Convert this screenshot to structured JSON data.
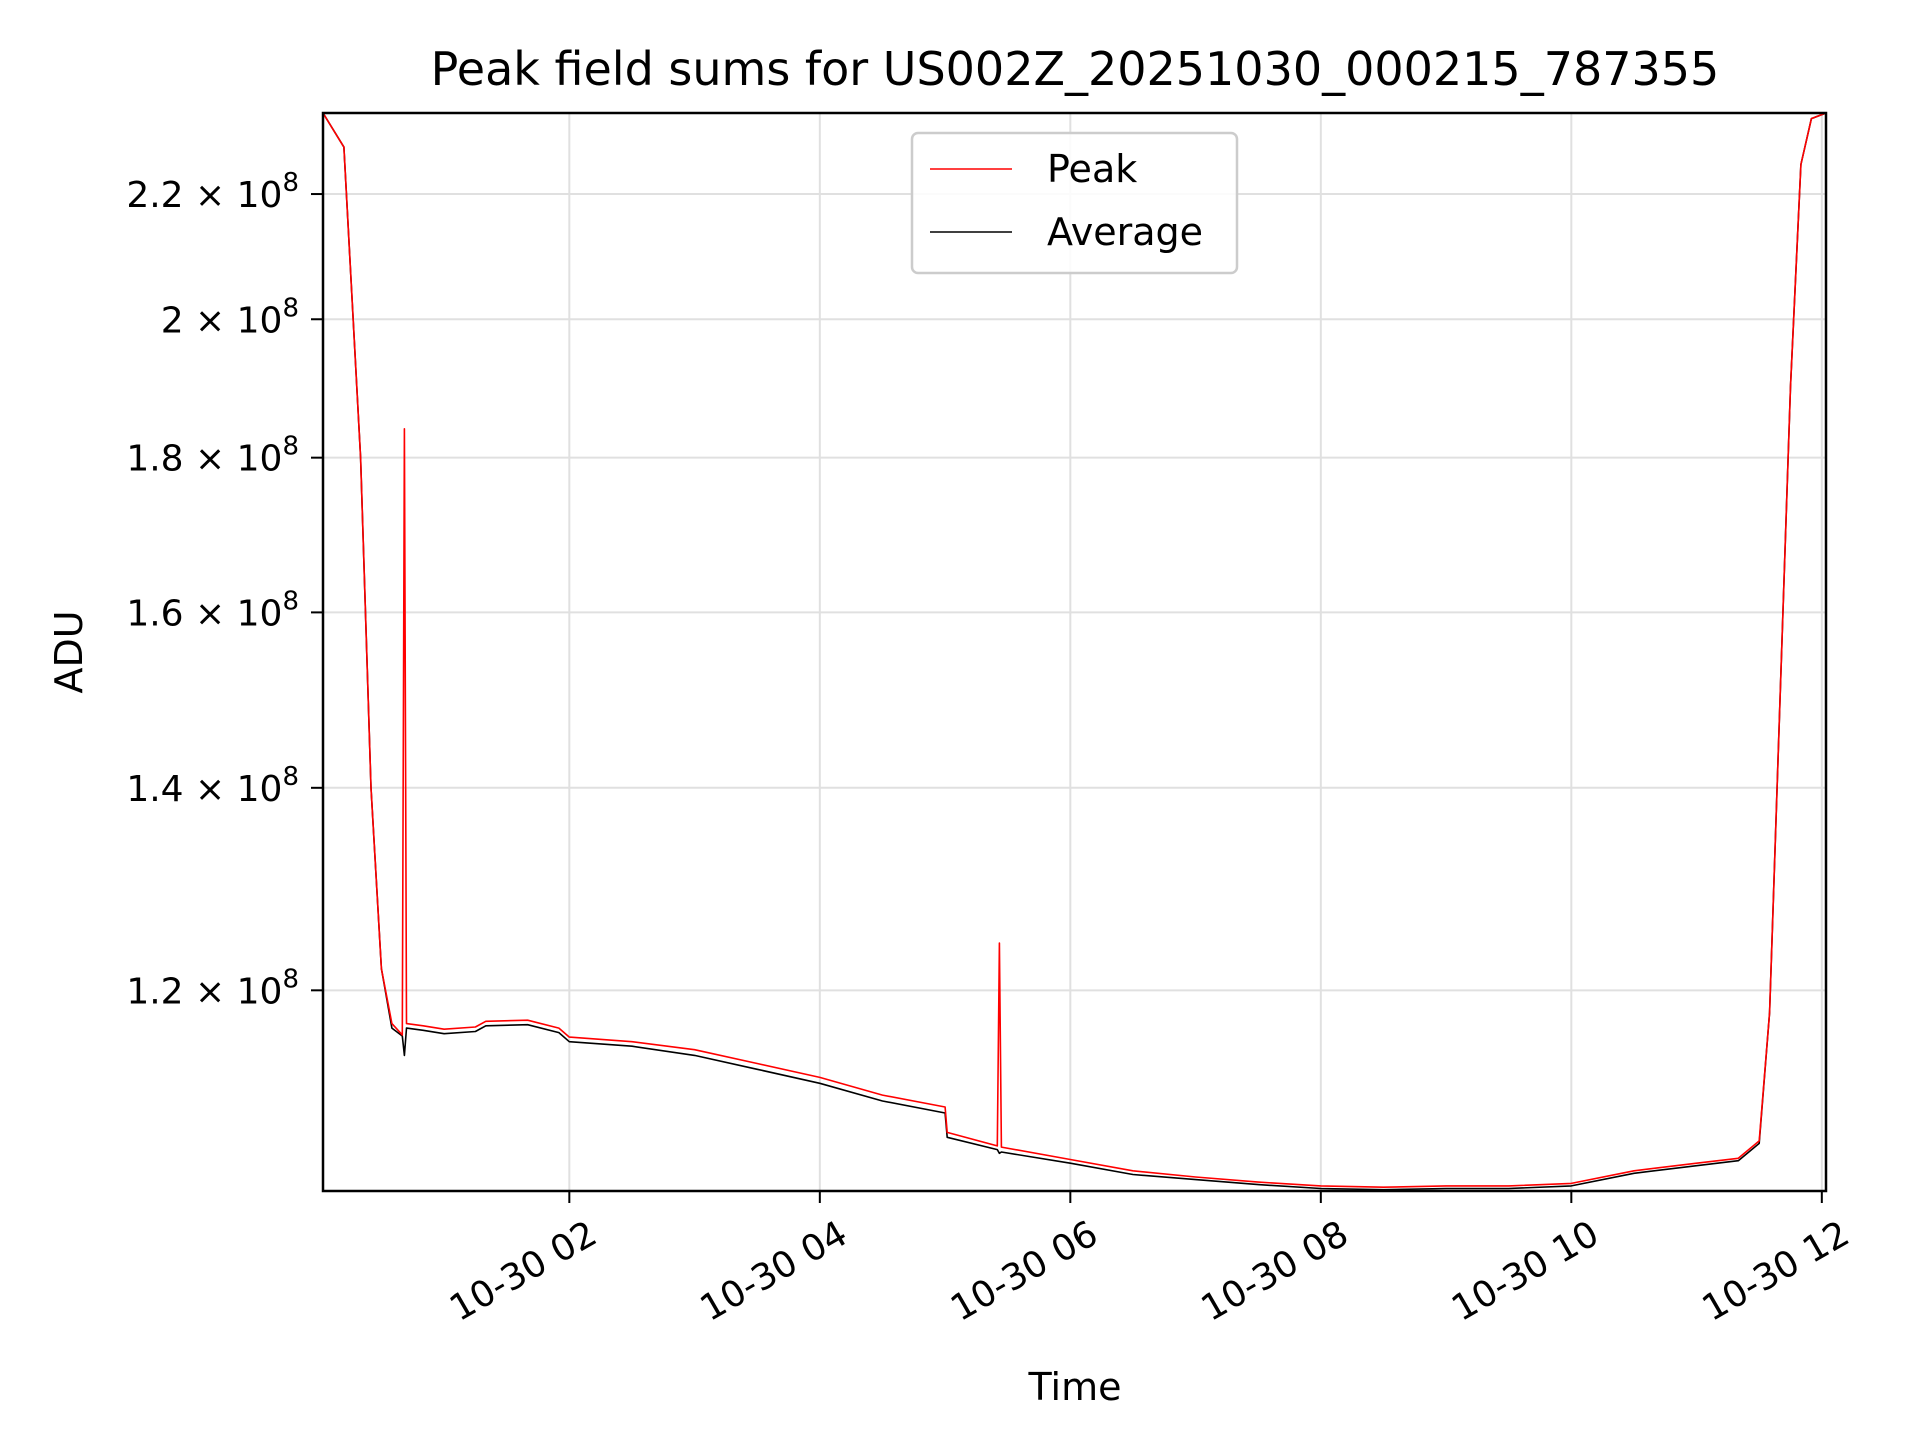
{
  "chart_data": {
    "type": "line",
    "title": "Peak field sums for US002Z_20251030_000215_787355",
    "xlabel": "Time",
    "ylabel": "ADU",
    "yscale": "log",
    "grid": true,
    "legend_position": "top-center",
    "xlim": [
      "2025-10-30 00:02",
      "2025-10-30 12:02"
    ],
    "ylim": [
      103000000,
      234000000
    ],
    "x_ticks": [
      {
        "x": "2025-10-30 02:00",
        "label": "10-30 02"
      },
      {
        "x": "2025-10-30 04:00",
        "label": "10-30 04"
      },
      {
        "x": "2025-10-30 06:00",
        "label": "10-30 06"
      },
      {
        "x": "2025-10-30 08:00",
        "label": "10-30 08"
      },
      {
        "x": "2025-10-30 10:00",
        "label": "10-30 10"
      },
      {
        "x": "2025-10-30 12:00",
        "label": "10-30 12"
      }
    ],
    "y_ticks": [
      {
        "value": 120000000,
        "mantissa": "1.2",
        "exponent": "8"
      },
      {
        "value": 140000000,
        "mantissa": "1.4",
        "exponent": "8"
      },
      {
        "value": 160000000,
        "mantissa": "1.6",
        "exponent": "8"
      },
      {
        "value": 180000000,
        "mantissa": "1.8",
        "exponent": "8"
      },
      {
        "value": 200000000,
        "mantissa": "2",
        "exponent": "8"
      },
      {
        "value": 220000000,
        "mantissa": "2.2",
        "exponent": "8"
      }
    ],
    "series": [
      {
        "name": "Peak",
        "color": "#ff0000",
        "x": [
          "2025-10-30 00:02",
          "2025-10-30 00:12",
          "2025-10-30 00:20",
          "2025-10-30 00:25",
          "2025-10-30 00:30",
          "2025-10-30 00:35",
          "2025-10-30 00:40",
          "2025-10-30 00:41",
          "2025-10-30 00:42",
          "2025-10-30 00:50",
          "2025-10-30 01:00",
          "2025-10-30 01:15",
          "2025-10-30 01:20",
          "2025-10-30 01:40",
          "2025-10-30 01:55",
          "2025-10-30 02:00",
          "2025-10-30 02:30",
          "2025-10-30 03:00",
          "2025-10-30 03:30",
          "2025-10-30 04:00",
          "2025-10-30 04:30",
          "2025-10-30 05:00",
          "2025-10-30 05:01",
          "2025-10-30 05:25",
          "2025-10-30 05:26",
          "2025-10-30 05:27",
          "2025-10-30 06:00",
          "2025-10-30 06:30",
          "2025-10-30 07:00",
          "2025-10-30 07:30",
          "2025-10-30 08:00",
          "2025-10-30 08:30",
          "2025-10-30 09:00",
          "2025-10-30 09:30",
          "2025-10-30 10:00",
          "2025-10-30 10:30",
          "2025-10-30 11:00",
          "2025-10-30 11:20",
          "2025-10-30 11:30",
          "2025-10-30 11:35",
          "2025-10-30 11:40",
          "2025-10-30 11:45",
          "2025-10-30 11:50",
          "2025-10-30 11:55",
          "2025-10-30 12:02"
        ],
        "y": [
          234000000,
          228000000,
          180000000,
          140000000,
          122000000,
          117000000,
          116000000,
          184000000,
          117000000,
          116800000,
          116500000,
          116700000,
          117200000,
          117300000,
          116600000,
          115800000,
          115400000,
          114700000,
          113500000,
          112300000,
          110800000,
          109800000,
          107700000,
          106600000,
          124400000,
          106500000,
          105500000,
          104600000,
          104100000,
          103700000,
          103400000,
          103300000,
          103400000,
          103400000,
          103600000,
          104600000,
          105200000,
          105600000,
          107000000,
          118000000,
          150000000,
          190000000,
          225000000,
          233000000,
          234000000
        ]
      },
      {
        "name": "Average",
        "color": "#000000",
        "x": [
          "2025-10-30 00:02",
          "2025-10-30 00:12",
          "2025-10-30 00:20",
          "2025-10-30 00:25",
          "2025-10-30 00:30",
          "2025-10-30 00:35",
          "2025-10-30 00:40",
          "2025-10-30 00:41",
          "2025-10-30 00:42",
          "2025-10-30 00:50",
          "2025-10-30 01:00",
          "2025-10-30 01:15",
          "2025-10-30 01:20",
          "2025-10-30 01:40",
          "2025-10-30 01:55",
          "2025-10-30 02:00",
          "2025-10-30 02:30",
          "2025-10-30 03:00",
          "2025-10-30 03:30",
          "2025-10-30 04:00",
          "2025-10-30 04:30",
          "2025-10-30 05:00",
          "2025-10-30 05:01",
          "2025-10-30 05:25",
          "2025-10-30 05:26",
          "2025-10-30 05:27",
          "2025-10-30 06:00",
          "2025-10-30 06:30",
          "2025-10-30 07:00",
          "2025-10-30 07:30",
          "2025-10-30 08:00",
          "2025-10-30 08:30",
          "2025-10-30 09:00",
          "2025-10-30 09:30",
          "2025-10-30 10:00",
          "2025-10-30 10:30",
          "2025-10-30 11:00",
          "2025-10-30 11:20",
          "2025-10-30 11:30",
          "2025-10-30 11:35",
          "2025-10-30 11:40",
          "2025-10-30 11:45",
          "2025-10-30 11:50",
          "2025-10-30 11:55",
          "2025-10-30 12:02"
        ],
        "y": [
          234000000,
          228000000,
          180000000,
          140000000,
          122000000,
          116600000,
          115900000,
          114200000,
          116600000,
          116400000,
          116100000,
          116300000,
          116800000,
          116900000,
          116200000,
          115400000,
          115000000,
          114200000,
          113000000,
          111800000,
          110300000,
          109300000,
          107300000,
          106300000,
          106000000,
          106100000,
          105200000,
          104300000,
          103900000,
          103500000,
          103200000,
          103100000,
          103200000,
          103200000,
          103400000,
          104400000,
          105000000,
          105400000,
          106800000,
          118000000,
          150000000,
          190000000,
          225000000,
          233000000,
          234000000
        ]
      }
    ]
  }
}
